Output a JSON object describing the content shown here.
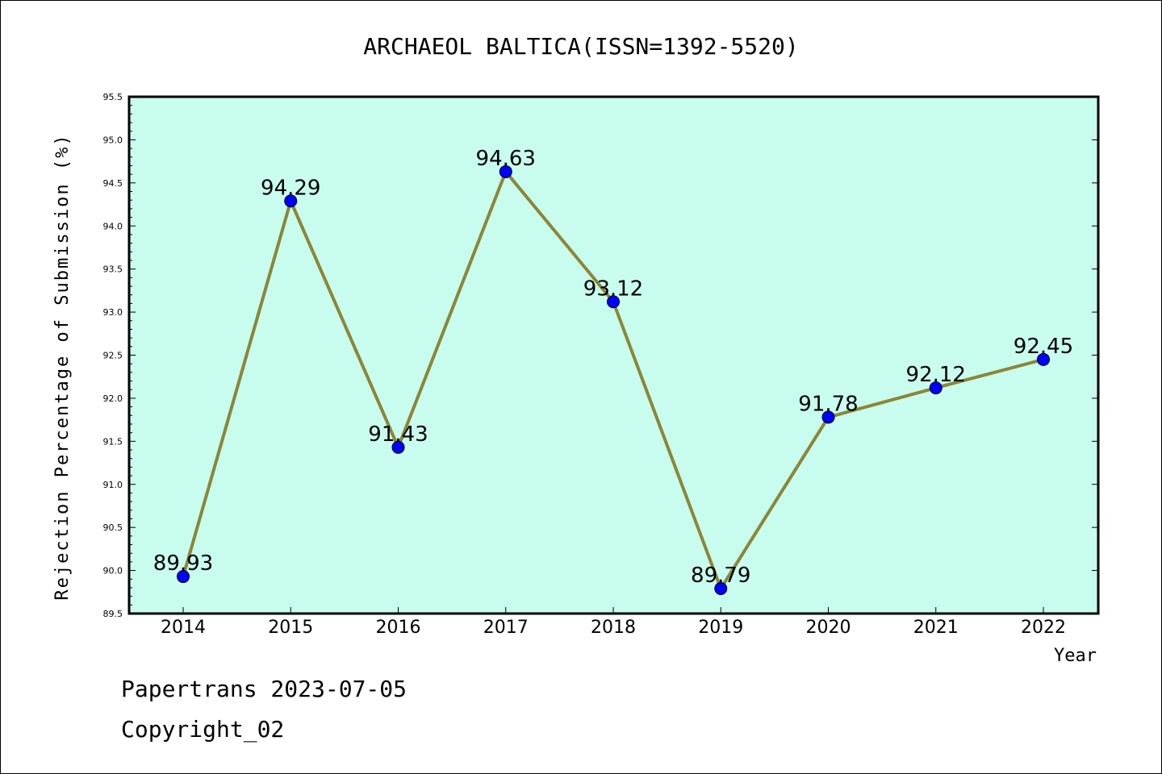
{
  "chart_data": {
    "type": "line",
    "title": "ARCHAEOL BALTICA(ISSN=1392-5520)",
    "xlabel": "Year",
    "ylabel": "Rejection Percentage of Submission (%)",
    "categories": [
      "2014",
      "2015",
      "2016",
      "2017",
      "2018",
      "2019",
      "2020",
      "2021",
      "2022"
    ],
    "values": [
      89.93,
      94.29,
      91.43,
      94.63,
      93.12,
      89.79,
      91.78,
      92.12,
      92.45
    ],
    "data_labels": [
      "89.93",
      "94.29",
      "91.43",
      "94.63",
      "93.12",
      "89.79",
      "91.78",
      "92.12",
      "92.45"
    ],
    "ylim": [
      89.5,
      95.5
    ],
    "yticks": [
      "89.5",
      "90.0",
      "90.5",
      "91.0",
      "91.5",
      "92.0",
      "92.5",
      "93.0",
      "93.5",
      "94.0",
      "94.5",
      "95.0",
      "95.5"
    ],
    "grid": false,
    "legend": "none",
    "colors": {
      "plot_background": "#c8fcee",
      "line": "#8b8637",
      "marker": "#0000ff"
    }
  },
  "footer": {
    "line1": "Papertrans 2023-07-05",
    "line2": "Copyright_02"
  }
}
